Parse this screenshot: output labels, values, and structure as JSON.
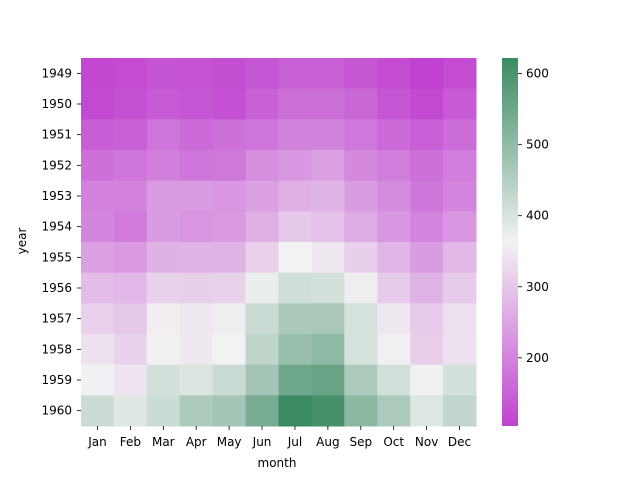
{
  "chart_data": {
    "type": "heatmap",
    "xlabel": "month",
    "ylabel": "year",
    "x": [
      "Jan",
      "Feb",
      "Mar",
      "Apr",
      "May",
      "Jun",
      "Jul",
      "Aug",
      "Sep",
      "Oct",
      "Nov",
      "Dec"
    ],
    "y": [
      "1949",
      "1950",
      "1951",
      "1952",
      "1953",
      "1954",
      "1955",
      "1956",
      "1957",
      "1958",
      "1959",
      "1960"
    ],
    "values": [
      [
        112,
        118,
        132,
        129,
        121,
        135,
        148,
        148,
        136,
        119,
        104,
        118
      ],
      [
        115,
        126,
        141,
        135,
        125,
        149,
        170,
        170,
        158,
        133,
        114,
        140
      ],
      [
        145,
        150,
        178,
        163,
        172,
        178,
        199,
        199,
        184,
        162,
        146,
        166
      ],
      [
        171,
        180,
        193,
        181,
        183,
        218,
        230,
        242,
        209,
        191,
        172,
        194
      ],
      [
        196,
        196,
        236,
        235,
        229,
        243,
        264,
        272,
        237,
        211,
        180,
        201
      ],
      [
        204,
        188,
        235,
        227,
        234,
        264,
        302,
        293,
        259,
        229,
        203,
        229
      ],
      [
        242,
        233,
        267,
        269,
        270,
        315,
        364,
        347,
        312,
        274,
        237,
        278
      ],
      [
        284,
        277,
        317,
        313,
        318,
        374,
        413,
        405,
        355,
        306,
        271,
        306
      ],
      [
        315,
        301,
        356,
        348,
        355,
        422,
        465,
        467,
        404,
        347,
        305,
        336
      ],
      [
        340,
        318,
        362,
        348,
        363,
        435,
        491,
        505,
        404,
        359,
        310,
        337
      ],
      [
        360,
        342,
        406,
        396,
        420,
        472,
        548,
        559,
        463,
        407,
        362,
        405
      ],
      [
        417,
        391,
        419,
        461,
        472,
        535,
        622,
        606,
        508,
        461,
        390,
        432
      ]
    ],
    "colorbar": {
      "ticks": [
        200,
        300,
        400,
        500,
        600
      ],
      "range": [
        104,
        622
      ]
    },
    "colormap": {
      "low": "#c042d0",
      "mid": "#f2f2f2",
      "high": "#3b8a63"
    }
  }
}
